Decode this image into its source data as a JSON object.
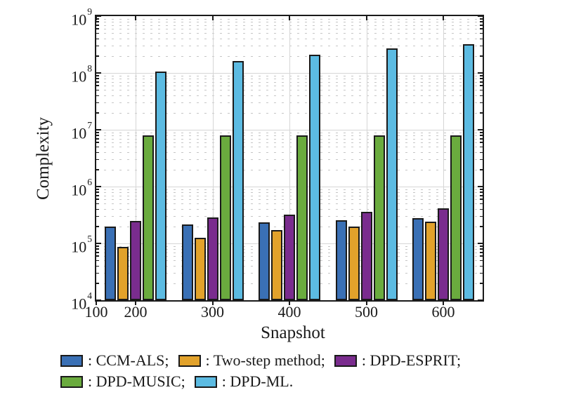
{
  "chart_data": {
    "type": "bar",
    "title": "",
    "xlabel": "Snapshot",
    "ylabel": "Complexity",
    "yscale": "log",
    "ylim": [
      10000,
      1000000000
    ],
    "y_tick_labels": [
      "10^4",
      "10^5",
      "10^6",
      "10^7",
      "10^8",
      "10^9"
    ],
    "y_tick_exponents": [
      4,
      5,
      6,
      7,
      8,
      9
    ],
    "x_tick_labels": [
      "100",
      "200",
      "300",
      "400",
      "500",
      "600"
    ],
    "categories": [
      200,
      300,
      400,
      500,
      600
    ],
    "series": [
      {
        "name": "CCM-ALS",
        "color": "#3A70B5",
        "values": [
          200000,
          215000,
          235000,
          255000,
          280000
        ]
      },
      {
        "name": "Two-step method",
        "color": "#E2A22B",
        "values": [
          87000,
          125000,
          170000,
          200000,
          240000
        ]
      },
      {
        "name": "DPD-ESPRIT",
        "color": "#7A2C8E",
        "values": [
          250000,
          290000,
          320000,
          360000,
          410000
        ]
      },
      {
        "name": "DPD-MUSIC",
        "color": "#6AAB3E",
        "values": [
          7900000,
          7900000,
          7900000,
          7900000,
          7900000
        ]
      },
      {
        "name": "DPD-ML",
        "color": "#5CBBE2",
        "values": [
          105000000,
          160000000,
          210000000,
          270000000,
          320000000
        ]
      }
    ],
    "grid": {
      "major": true,
      "minor": true,
      "edge_color": "#1a1a1a",
      "major_color": "#d6d6d6",
      "minor_color": "#c6c6c6"
    },
    "legend": {
      "position": "below-left",
      "rows": [
        [
          {
            "series": 0,
            "label": ": CCM-ALS;"
          },
          {
            "series": 1,
            "label": ": Two-step method;"
          },
          {
            "series": 2,
            "label": ": DPD-ESPRIT;"
          }
        ],
        [
          {
            "series": 3,
            "label": ": DPD-MUSIC;"
          },
          {
            "series": 4,
            "label": ": DPD-ML."
          }
        ]
      ]
    }
  }
}
